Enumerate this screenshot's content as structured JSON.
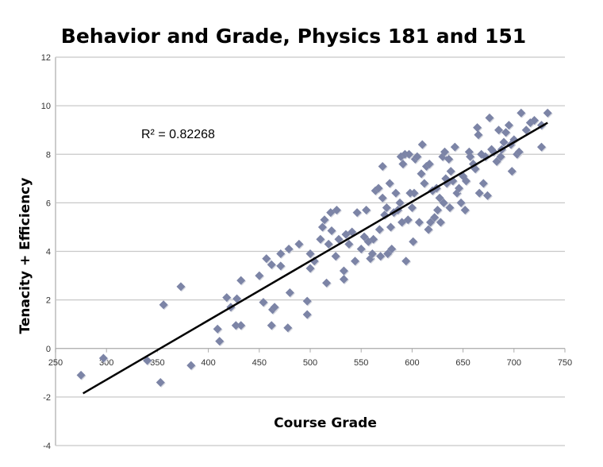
{
  "chart_data": {
    "type": "scatter",
    "title": "Behavior and Grade, Physics 181 and 151",
    "xlabel": "Course Grade",
    "ylabel": "Tenacity + Efficiency",
    "xlim": [
      250,
      750
    ],
    "ylim": [
      -4,
      12
    ],
    "xticks": [
      250,
      300,
      350,
      400,
      450,
      500,
      550,
      600,
      650,
      700,
      750
    ],
    "yticks": [
      -4,
      -2,
      0,
      2,
      4,
      6,
      8,
      10,
      12
    ],
    "grid": "horizontal",
    "marker_color": "#7c84a6",
    "annotation": "R² = 0.82268",
    "trendline": {
      "type": "linear",
      "x": [
        277,
        733
      ],
      "y": [
        -1.85,
        9.3
      ],
      "r_squared": 0.82268
    },
    "points": [
      [
        275,
        -1.1
      ],
      [
        297,
        -0.4
      ],
      [
        340,
        -0.5
      ],
      [
        353,
        -1.4
      ],
      [
        356,
        1.8
      ],
      [
        373,
        2.55
      ],
      [
        383,
        -0.7
      ],
      [
        409,
        0.8
      ],
      [
        411,
        0.3
      ],
      [
        418,
        2.1
      ],
      [
        422,
        1.7
      ],
      [
        427,
        0.95
      ],
      [
        428,
        2.05
      ],
      [
        432,
        0.95
      ],
      [
        432,
        2.8
      ],
      [
        450,
        3.0
      ],
      [
        454,
        1.9
      ],
      [
        457,
        3.7
      ],
      [
        462,
        3.45
      ],
      [
        462,
        0.95
      ],
      [
        463,
        1.6
      ],
      [
        465,
        1.7
      ],
      [
        471,
        3.9
      ],
      [
        471,
        3.4
      ],
      [
        479,
        4.1
      ],
      [
        480,
        2.3
      ],
      [
        478,
        0.85
      ],
      [
        489,
        4.3
      ],
      [
        497,
        1.95
      ],
      [
        497,
        1.4
      ],
      [
        500,
        3.9
      ],
      [
        500,
        3.3
      ],
      [
        504,
        3.6
      ],
      [
        510,
        4.5
      ],
      [
        512,
        5.0
      ],
      [
        514,
        5.3
      ],
      [
        516,
        2.7
      ],
      [
        518,
        4.3
      ],
      [
        520,
        5.6
      ],
      [
        521,
        4.85
      ],
      [
        525,
        3.8
      ],
      [
        526,
        5.7
      ],
      [
        528,
        4.5
      ],
      [
        533,
        3.2
      ],
      [
        533,
        2.85
      ],
      [
        535,
        4.7
      ],
      [
        538,
        4.3
      ],
      [
        541,
        4.8
      ],
      [
        544,
        3.6
      ],
      [
        546,
        5.6
      ],
      [
        550,
        4.1
      ],
      [
        553,
        4.6
      ],
      [
        555,
        5.7
      ],
      [
        557,
        4.4
      ],
      [
        559,
        3.7
      ],
      [
        561,
        3.9
      ],
      [
        562,
        4.5
      ],
      [
        564,
        6.5
      ],
      [
        567,
        6.6
      ],
      [
        568,
        4.9
      ],
      [
        569,
        3.8
      ],
      [
        571,
        7.5
      ],
      [
        571,
        6.2
      ],
      [
        573,
        5.5
      ],
      [
        575,
        5.8
      ],
      [
        576,
        3.9
      ],
      [
        578,
        6.8
      ],
      [
        579,
        5.0
      ],
      [
        580,
        4.1
      ],
      [
        582,
        5.6
      ],
      [
        584,
        6.4
      ],
      [
        586,
        5.7
      ],
      [
        588,
        6.0
      ],
      [
        589,
        7.9
      ],
      [
        590,
        5.2
      ],
      [
        591,
        7.6
      ],
      [
        593,
        8.0
      ],
      [
        594,
        3.6
      ],
      [
        596,
        5.3
      ],
      [
        597,
        8.0
      ],
      [
        598,
        6.4
      ],
      [
        600,
        5.8
      ],
      [
        601,
        4.4
      ],
      [
        602,
        6.4
      ],
      [
        603,
        7.8
      ],
      [
        605,
        7.9
      ],
      [
        607,
        5.2
      ],
      [
        609,
        7.2
      ],
      [
        610,
        8.4
      ],
      [
        612,
        6.8
      ],
      [
        614,
        7.5
      ],
      [
        616,
        4.9
      ],
      [
        617,
        7.6
      ],
      [
        618,
        5.2
      ],
      [
        620,
        6.5
      ],
      [
        622,
        5.4
      ],
      [
        624,
        6.6
      ],
      [
        625,
        5.7
      ],
      [
        627,
        6.2
      ],
      [
        628,
        5.2
      ],
      [
        630,
        7.9
      ],
      [
        631,
        6.0
      ],
      [
        632,
        8.1
      ],
      [
        633,
        7.0
      ],
      [
        634,
        6.8
      ],
      [
        636,
        7.8
      ],
      [
        637,
        5.8
      ],
      [
        638,
        7.3
      ],
      [
        640,
        6.9
      ],
      [
        642,
        8.3
      ],
      [
        644,
        6.4
      ],
      [
        646,
        6.6
      ],
      [
        648,
        6.0
      ],
      [
        650,
        7.1
      ],
      [
        652,
        5.7
      ],
      [
        653,
        6.9
      ],
      [
        656,
        8.1
      ],
      [
        657,
        7.9
      ],
      [
        660,
        7.6
      ],
      [
        662,
        7.4
      ],
      [
        664,
        9.1
      ],
      [
        665,
        8.8
      ],
      [
        666,
        6.4
      ],
      [
        668,
        8.0
      ],
      [
        670,
        6.8
      ],
      [
        672,
        7.9
      ],
      [
        674,
        6.3
      ],
      [
        676,
        9.5
      ],
      [
        678,
        8.2
      ],
      [
        680,
        8.1
      ],
      [
        683,
        7.7
      ],
      [
        685,
        9.0
      ],
      [
        687,
        7.9
      ],
      [
        688,
        8.2
      ],
      [
        690,
        8.5
      ],
      [
        692,
        8.9
      ],
      [
        695,
        9.2
      ],
      [
        697,
        8.4
      ],
      [
        698,
        7.3
      ],
      [
        700,
        8.6
      ],
      [
        703,
        8.0
      ],
      [
        705,
        8.1
      ],
      [
        707,
        9.7
      ],
      [
        712,
        9.0
      ],
      [
        716,
        9.3
      ],
      [
        720,
        9.4
      ],
      [
        727,
        8.3
      ],
      [
        727,
        9.2
      ],
      [
        733,
        9.7
      ]
    ]
  }
}
